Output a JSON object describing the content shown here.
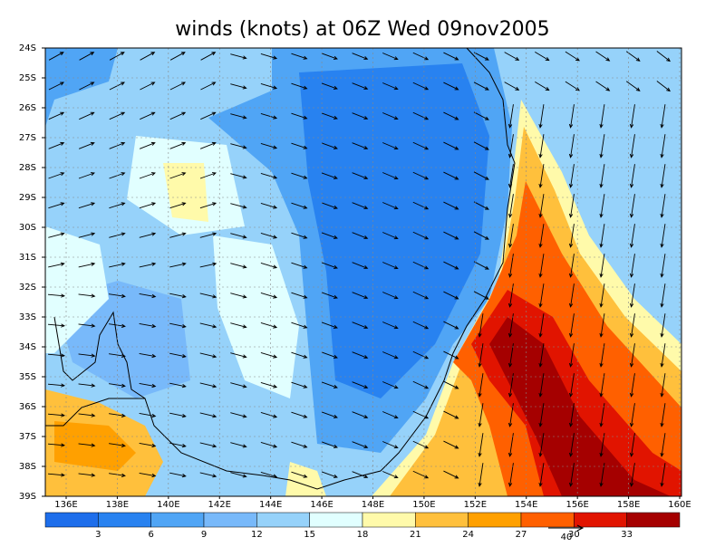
{
  "title": "winds (knots) at 06Z Wed 09nov2005",
  "latitude_labels": [
    "24S",
    "25S",
    "26S",
    "27S",
    "28S",
    "29S",
    "30S",
    "31S",
    "32S",
    "33S",
    "34S",
    "35S",
    "36S",
    "37S",
    "38S",
    "39S"
  ],
  "longitude_labels": [
    "136E",
    "138E",
    "140E",
    "142E",
    "144E",
    "146E",
    "148E",
    "150E",
    "152E",
    "154E",
    "156E",
    "158E",
    "160E"
  ],
  "colorbar": {
    "labels": [
      3,
      6,
      9,
      12,
      15,
      18,
      21,
      24,
      27,
      30,
      33
    ],
    "colors": [
      "#1e6eeb",
      "#2882f0",
      "#50a5f5",
      "#78b9fa",
      "#96d2fa",
      "#e1ffff",
      "#fffaaa",
      "#ffc03c",
      "#ffa000",
      "#ff6000",
      "#e11400",
      "#a50000"
    ]
  },
  "reference_vector_label": "40"
}
